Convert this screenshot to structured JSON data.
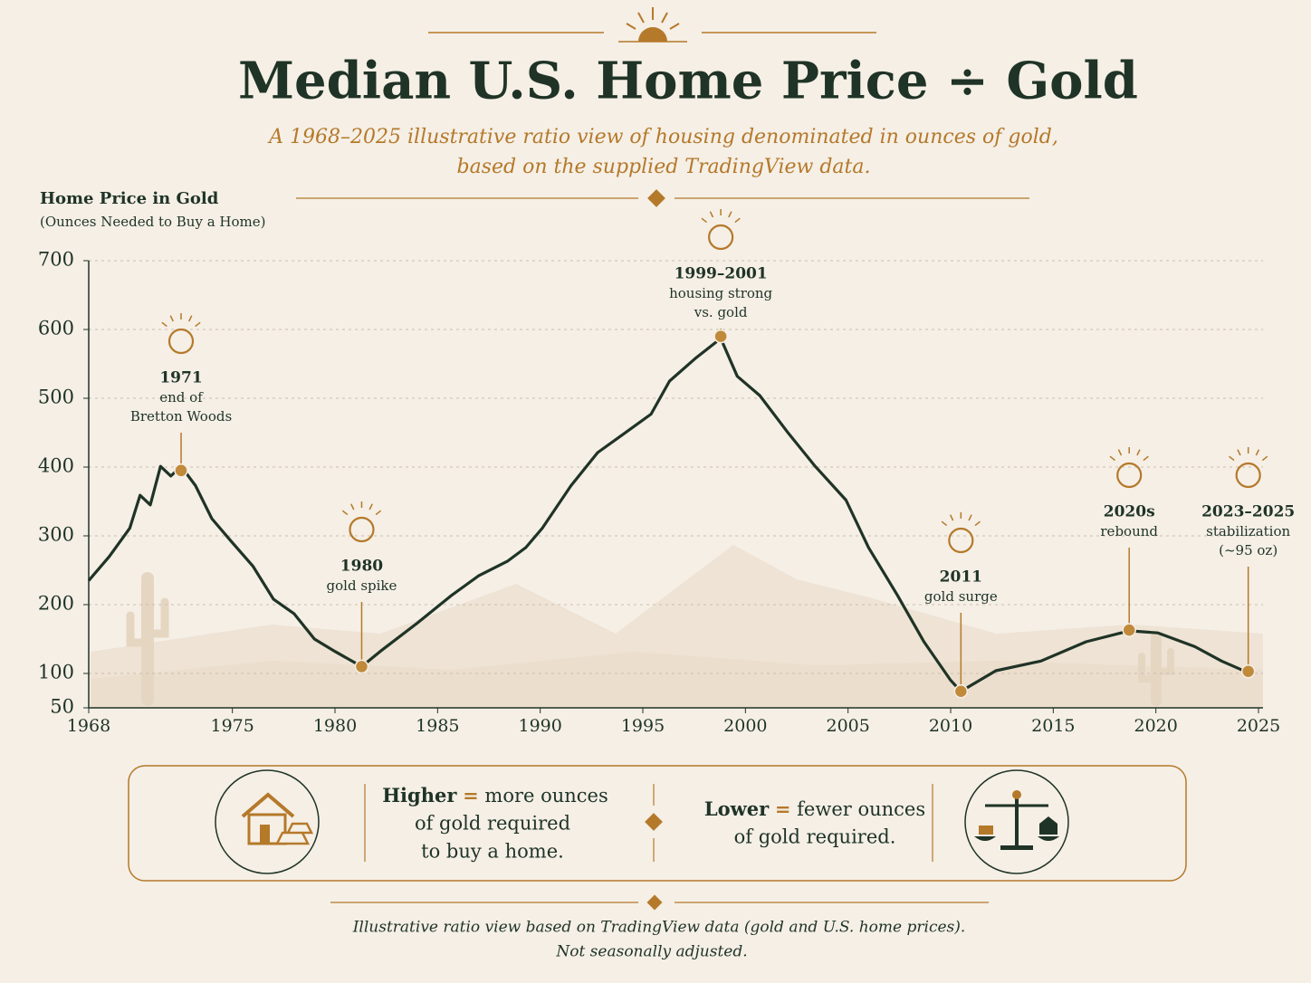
{
  "chart_data": {
    "type": "line",
    "title": "Median U.S. Home Price ÷ Gold",
    "subtitle": [
      "A 1968–2025 illustrative ratio view of housing denominated in ounces of gold,",
      "based on the supplied TradingView data."
    ],
    "y_label": "Home Price in Gold",
    "y_sublabel": "(Ounces Needed to Buy a Home)",
    "color": "#1f3326",
    "x": [
      1968,
      1969,
      1970,
      1970.5,
      1971,
      1971.5,
      1972,
      1972.5,
      1973.2,
      1974,
      1975,
      1976,
      1977,
      1978,
      1979,
      1980,
      1981.3,
      1982.2,
      1984,
      1985.7,
      1987,
      1988.4,
      1989.3,
      1990.1,
      1991.5,
      1992.8,
      1994.1,
      1995.4,
      1996.3,
      1997.6,
      1998.8,
      1999.6,
      2000.7,
      2002.1,
      2003.4,
      2004.9,
      2006,
      2007.4,
      2008.7,
      2010,
      2010.5,
      2012.2,
      2014.4,
      2016.6,
      2018.7,
      2020.1,
      2021.9,
      2023.2,
      2024.5
    ],
    "values": [
      235,
      270,
      311,
      359,
      345,
      401,
      387,
      401,
      373,
      325,
      290,
      256,
      208,
      187,
      150,
      132,
      110,
      132,
      173,
      214,
      242,
      263,
      283,
      311,
      373,
      421,
      449,
      477,
      525,
      559,
      587,
      532,
      504,
      449,
      401,
      352,
      283,
      214,
      146,
      90,
      74,
      104,
      118,
      146,
      162,
      159,
      139,
      118,
      101
    ],
    "xlim": [
      1968,
      2025
    ],
    "xticks": [
      1968,
      1975,
      1980,
      1985,
      1990,
      1995,
      2000,
      2005,
      2010,
      2015,
      2020,
      2025
    ],
    "ylim": [
      50,
      700
    ],
    "yticks": [
      50,
      100,
      200,
      300,
      400,
      500,
      600,
      700
    ],
    "grid": true,
    "annotations": [
      {
        "lines": [
          "1971",
          "end of",
          "Bretton Woods"
        ],
        "x": 1972.5,
        "y": 395
      },
      {
        "lines": [
          "1980",
          "gold spike"
        ],
        "x": 1981.3,
        "y": 110
      },
      {
        "lines": [
          "1999–2001",
          "housing strong",
          "vs. gold"
        ],
        "x": 1998.8,
        "y": 590
      },
      {
        "lines": [
          "2011",
          "gold surge"
        ],
        "x": 2010.5,
        "y": 74
      },
      {
        "lines": [
          "2020s",
          "rebound"
        ],
        "x": 2018.7,
        "y": 163
      },
      {
        "lines": [
          "2023–2025",
          "stabilization",
          "(~95 oz)"
        ],
        "x": 2024.5,
        "y": 103
      }
    ]
  },
  "key": {
    "higher": {
      "term": "Higher",
      "sign": "=",
      "lines": [
        "more ounces",
        "of gold required",
        "to buy a home."
      ]
    },
    "lower": {
      "term": "Lower",
      "sign": "=",
      "lines": [
        "fewer ounces",
        "of gold required."
      ]
    }
  },
  "footer": [
    "Illustrative ratio view based on TradingView data (gold and U.S. home prices).",
    "Not seasonally adjusted."
  ]
}
